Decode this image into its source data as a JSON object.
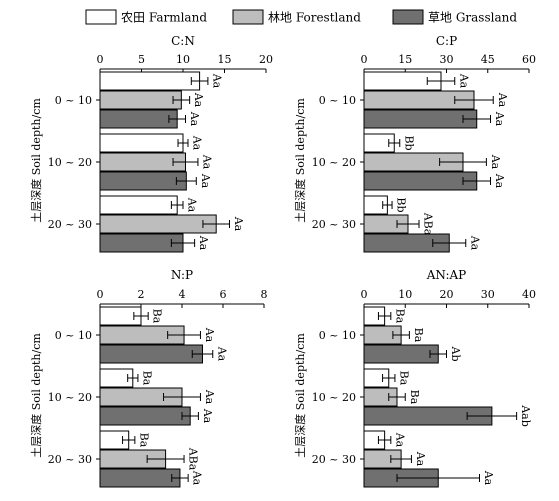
{
  "legend": [
    {
      "label": "农田 Farmland",
      "color": "#ffffff"
    },
    {
      "label": "林地 Forestland",
      "color": "#bdbdbd"
    },
    {
      "label": "草地 Grassland",
      "color": "#707070"
    }
  ],
  "chart_data": [
    {
      "type": "bar",
      "orientation": "horizontal",
      "title": "C:N",
      "ylabel": "土层深度 Soil depth/cm",
      "xlim": [
        0,
        20
      ],
      "xticks": [
        0,
        5,
        10,
        15,
        20
      ],
      "categories": [
        "0 ~ 10",
        "10 ~ 20",
        "20 ~ 30"
      ],
      "series": [
        {
          "name": "农田 Farmland",
          "values": [
            12.0,
            10.0,
            9.3
          ],
          "errors": [
            1.0,
            0.6,
            0.7
          ],
          "labels": [
            "Aa",
            "Aa",
            "Aa"
          ]
        },
        {
          "name": "林地 Forestland",
          "values": [
            9.8,
            10.3,
            14.0
          ],
          "errors": [
            1.0,
            1.5,
            1.6
          ],
          "labels": [
            "Aa",
            "Aa",
            "Aa"
          ]
        },
        {
          "name": "草地 Grassland",
          "values": [
            9.3,
            10.4,
            10.0
          ],
          "errors": [
            1.0,
            1.2,
            1.4
          ],
          "labels": [
            "Aa",
            "Aa",
            "Aa"
          ]
        }
      ]
    },
    {
      "type": "bar",
      "orientation": "horizontal",
      "title": "C:P",
      "ylabel": "土层深度 Soil depth/cm",
      "xlim": [
        0,
        60
      ],
      "xticks": [
        0,
        15,
        30,
        45,
        60
      ],
      "categories": [
        "0 ~ 10",
        "10 ~ 20",
        "20 ~ 30"
      ],
      "series": [
        {
          "name": "农田 Farmland",
          "values": [
            28.0,
            11.0,
            8.5
          ],
          "errors": [
            5.0,
            2.0,
            1.7
          ],
          "labels": [
            "Aa",
            "Bb",
            "Bb"
          ]
        },
        {
          "name": "林地 Forestland",
          "values": [
            40.0,
            36.0,
            16.0
          ],
          "errors": [
            7.0,
            8.5,
            4.0
          ],
          "labels": [
            "Aa",
            "Aa",
            "ABa"
          ]
        },
        {
          "name": "草地 Grassland",
          "values": [
            41.0,
            41.0,
            31.0
          ],
          "errors": [
            5.0,
            5.0,
            6.0
          ],
          "labels": [
            "Aa",
            "Aa",
            "Aa"
          ]
        }
      ]
    },
    {
      "type": "bar",
      "orientation": "horizontal",
      "title": "N:P",
      "ylabel": "土层深度 Soil depth/cm",
      "xlim": [
        0,
        8
      ],
      "xticks": [
        0,
        2,
        4,
        6,
        8
      ],
      "categories": [
        "0 ~ 10",
        "10 ~ 20",
        "20 ~ 30"
      ],
      "series": [
        {
          "name": "农田 Farmland",
          "values": [
            2.0,
            1.6,
            1.4
          ],
          "errors": [
            0.35,
            0.25,
            0.3
          ],
          "labels": [
            "Ba",
            "Ba",
            "Ba"
          ]
        },
        {
          "name": "林地 Forestland",
          "values": [
            4.1,
            4.0,
            3.2
          ],
          "errors": [
            0.8,
            0.9,
            0.9
          ],
          "labels": [
            "Aa",
            "Aa",
            "ABa"
          ]
        },
        {
          "name": "草地 Grassland",
          "values": [
            5.0,
            4.4,
            3.9
          ],
          "errors": [
            0.5,
            0.4,
            0.4
          ],
          "labels": [
            "Aa",
            "Aa",
            "Aa"
          ]
        }
      ]
    },
    {
      "type": "bar",
      "orientation": "horizontal",
      "title": "AN:AP",
      "ylabel": "土层深度 Soil depth/cm",
      "xlim": [
        0,
        40
      ],
      "xticks": [
        0,
        10,
        20,
        30,
        40
      ],
      "categories": [
        "0 ~ 10",
        "10 ~ 20",
        "20 ~ 30"
      ],
      "series": [
        {
          "name": "农田 Farmland",
          "values": [
            5.0,
            6.0,
            5.0
          ],
          "errors": [
            1.5,
            1.5,
            1.5
          ],
          "labels": [
            "Ba",
            "Ba",
            "Aa"
          ]
        },
        {
          "name": "林地 Forestland",
          "values": [
            9.0,
            8.0,
            9.0
          ],
          "errors": [
            2.0,
            2.0,
            2.5
          ],
          "labels": [
            "Ba",
            "Ba",
            "Aa"
          ]
        },
        {
          "name": "草地 Grassland",
          "values": [
            18.0,
            31.0,
            18.0
          ],
          "errors": [
            2.0,
            6.0,
            10.0
          ],
          "labels": [
            "Ab",
            "Aab",
            "Aa"
          ]
        }
      ]
    }
  ]
}
